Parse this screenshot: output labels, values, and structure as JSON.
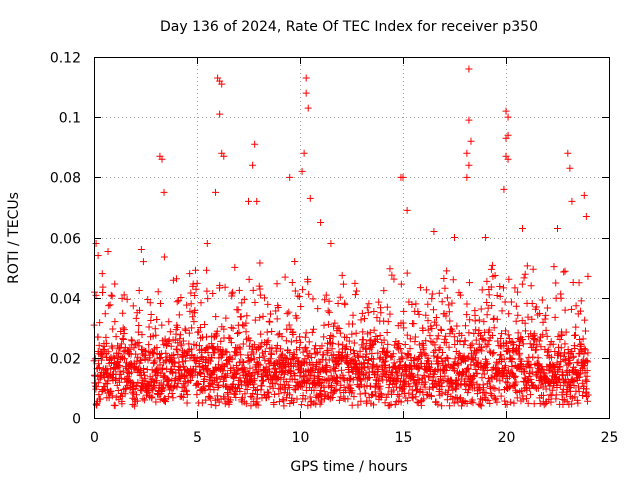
{
  "chart_data": {
    "type": "scatter",
    "title": "Day 136 of 2024, Rate Of TEC Index for receiver p350",
    "xlabel": "GPS time / hours",
    "ylabel": "ROTI / TECUs",
    "xlim": [
      0,
      25
    ],
    "ylim": [
      0,
      0.12
    ],
    "x_ticks": [
      0,
      5,
      10,
      15,
      20,
      25
    ],
    "y_ticks": [
      0,
      0.02,
      0.04,
      0.06,
      0.08,
      0.1,
      0.12
    ],
    "x_tick_labels": [
      "0",
      "5",
      "10",
      "15",
      "20",
      "25"
    ],
    "y_tick_labels": [
      "0",
      "0.02",
      "0.04",
      "0.06",
      "0.08",
      "0.1",
      "0.12"
    ],
    "grid": true,
    "marker": "+",
    "color": "#ff0000",
    "series": [
      {
        "name": "p350 ROTI",
        "x_range": [
          0,
          24
        ],
        "baseline_mean": 0.015,
        "baseline_spread": 0.006,
        "min_value": 0.004,
        "points": [
          [
            0.1,
            0.058
          ],
          [
            0.2,
            0.054
          ],
          [
            0.4,
            0.048
          ],
          [
            2.3,
            0.056
          ],
          [
            2.4,
            0.052
          ],
          [
            3.2,
            0.087
          ],
          [
            3.3,
            0.086
          ],
          [
            3.4,
            0.075
          ],
          [
            5.5,
            0.058
          ],
          [
            5.9,
            0.075
          ],
          [
            6.0,
            0.113
          ],
          [
            6.1,
            0.112
          ],
          [
            6.2,
            0.111
          ],
          [
            6.1,
            0.101
          ],
          [
            6.2,
            0.088
          ],
          [
            6.3,
            0.087
          ],
          [
            7.5,
            0.072
          ],
          [
            7.7,
            0.084
          ],
          [
            7.8,
            0.091
          ],
          [
            7.9,
            0.072
          ],
          [
            9.5,
            0.08
          ],
          [
            10.1,
            0.082
          ],
          [
            10.2,
            0.088
          ],
          [
            10.3,
            0.113
          ],
          [
            10.3,
            0.108
          ],
          [
            10.4,
            0.103
          ],
          [
            10.5,
            0.073
          ],
          [
            11.0,
            0.065
          ],
          [
            11.5,
            0.058
          ],
          [
            14.9,
            0.08
          ],
          [
            15.0,
            0.08
          ],
          [
            15.2,
            0.069
          ],
          [
            16.5,
            0.062
          ],
          [
            17.5,
            0.06
          ],
          [
            18.1,
            0.088
          ],
          [
            18.2,
            0.116
          ],
          [
            18.2,
            0.099
          ],
          [
            18.3,
            0.092
          ],
          [
            18.2,
            0.084
          ],
          [
            18.1,
            0.08
          ],
          [
            19.0,
            0.06
          ],
          [
            19.9,
            0.076
          ],
          [
            20.0,
            0.102
          ],
          [
            20.1,
            0.1
          ],
          [
            20.1,
            0.094
          ],
          [
            20.0,
            0.093
          ],
          [
            20.0,
            0.087
          ],
          [
            20.1,
            0.086
          ],
          [
            20.8,
            0.063
          ],
          [
            22.5,
            0.063
          ],
          [
            23.0,
            0.088
          ],
          [
            23.1,
            0.083
          ],
          [
            23.2,
            0.072
          ],
          [
            23.8,
            0.074
          ],
          [
            23.9,
            0.067
          ]
        ]
      }
    ]
  }
}
